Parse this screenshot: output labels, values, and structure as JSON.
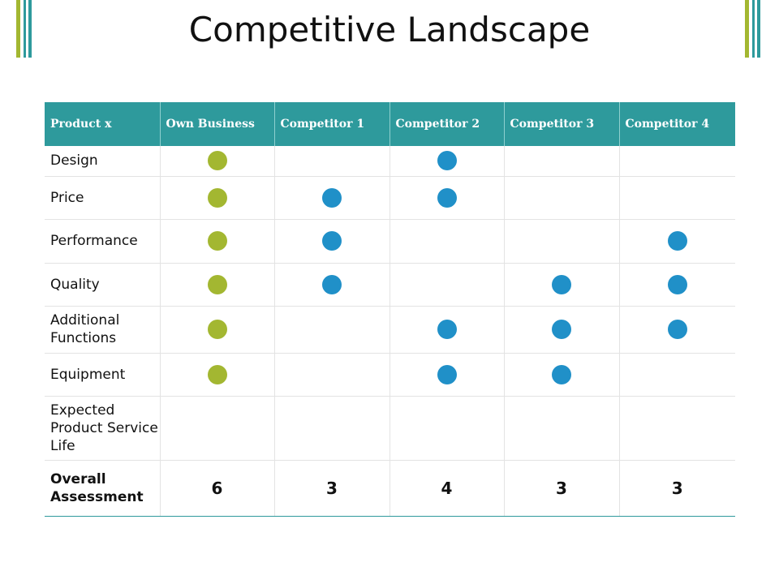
{
  "title": "Competitive Landscape",
  "colors": {
    "header_bg": "#2e9a9c",
    "own_business_dot": "#a3b731",
    "competitor_dot": "#2090c8",
    "corner_bar_green": "#a3b731",
    "corner_bar_teal": "#2e9a9c"
  },
  "table": {
    "headers": [
      "Product x",
      "Own Business",
      "Competitor  1",
      "Competitor  2",
      "Competitor  3",
      "Competitor  4"
    ],
    "rows": [
      {
        "label": "Design",
        "marks": [
          true,
          false,
          true,
          false,
          false
        ]
      },
      {
        "label": "Price",
        "marks": [
          true,
          true,
          true,
          false,
          false
        ]
      },
      {
        "label": "Performance",
        "marks": [
          true,
          true,
          false,
          false,
          true
        ]
      },
      {
        "label": "Quality",
        "marks": [
          true,
          true,
          false,
          true,
          true
        ]
      },
      {
        "label": "Additional Functions",
        "marks": [
          true,
          false,
          true,
          true,
          true
        ]
      },
      {
        "label": "Equipment",
        "marks": [
          true,
          false,
          true,
          true,
          false
        ]
      },
      {
        "label": "Expected Product Service Life",
        "marks": [
          false,
          false,
          false,
          false,
          false
        ]
      }
    ],
    "total": {
      "label": "Overall Assessment",
      "scores": [
        "6",
        "3",
        "4",
        "3",
        "3"
      ]
    }
  }
}
